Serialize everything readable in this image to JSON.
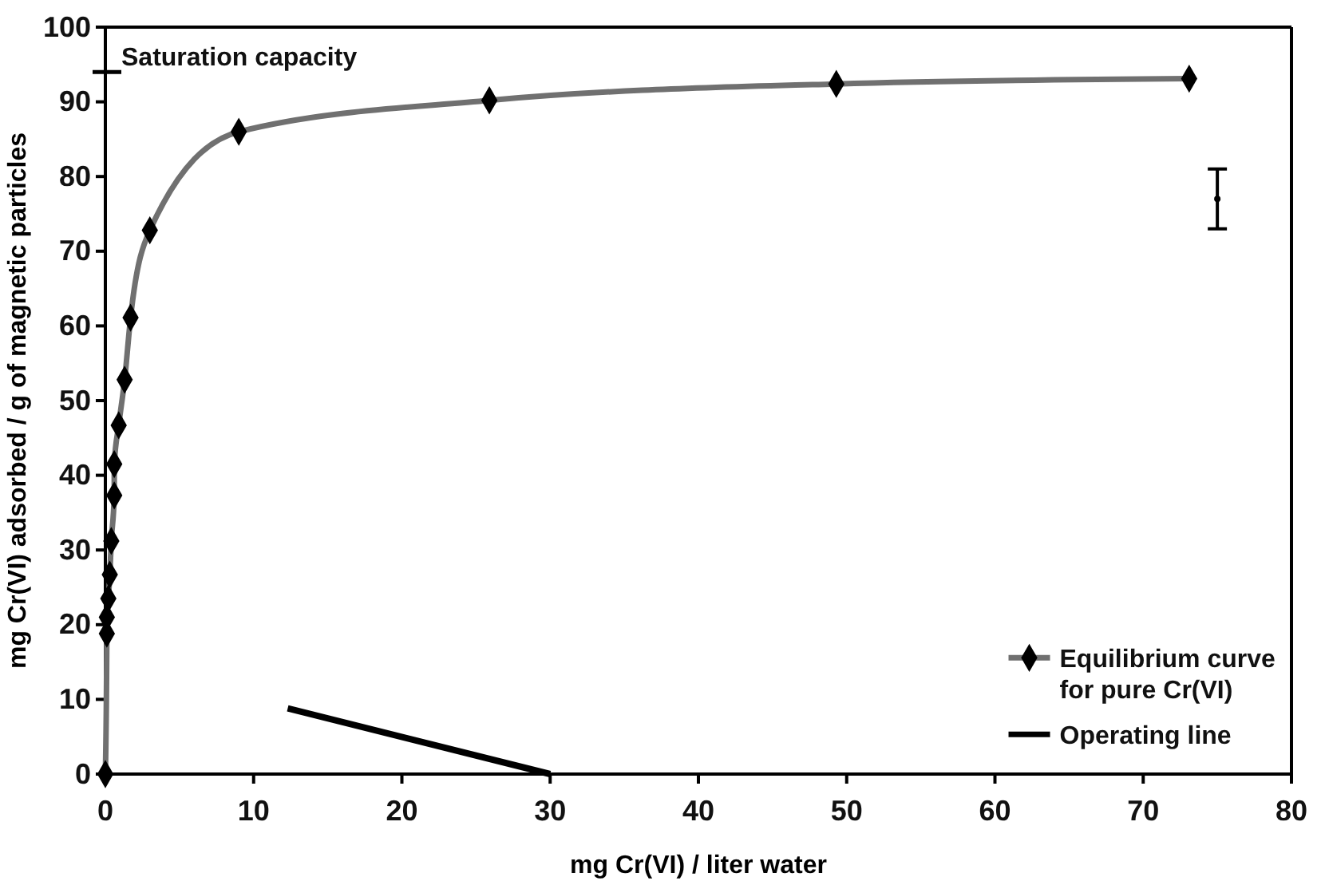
{
  "chart_data": {
    "type": "line",
    "xlabel": "mg Cr(VI) / liter water",
    "ylabel": "mg Cr(VI) adsorbed / g of magnetic particles",
    "xlim": [
      0,
      80
    ],
    "xticks": [
      0,
      10,
      20,
      30,
      40,
      50,
      60,
      70,
      80
    ],
    "ylim": [
      0,
      100
    ],
    "yticks": [
      0,
      10,
      20,
      30,
      40,
      50,
      60,
      70,
      80,
      90,
      100
    ],
    "grid": false,
    "legend": "bottom right",
    "ref_lines": [
      {
        "axis": "y",
        "value": 94,
        "label": "Saturation capacity"
      }
    ],
    "series": [
      {
        "name": "Equilibrium curve\nfor pure Cr(VI)",
        "color": "#707070",
        "marker": "diamond",
        "x": [
          0,
          0.1,
          0.1,
          0.2,
          0.3,
          0.4,
          0.6,
          0.6,
          0.9,
          1.3,
          1.7,
          3.0,
          9.0,
          25.9,
          49.3,
          73.1
        ],
        "values": [
          0,
          18.8,
          21,
          23.5,
          26.7,
          31.2,
          37.3,
          41.5,
          46.7,
          52.8,
          61.1,
          72.8,
          86,
          90.2,
          92.4,
          93.1
        ]
      },
      {
        "name": "Operating line",
        "color": "#000000",
        "marker": "none",
        "x": [
          12.3,
          30
        ],
        "values": [
          8.8,
          0
        ]
      },
      {
        "type": "scatter",
        "color": "#000000",
        "x": [
          75
        ],
        "values": [
          77
        ],
        "errors": [
          4
        ]
      }
    ]
  }
}
